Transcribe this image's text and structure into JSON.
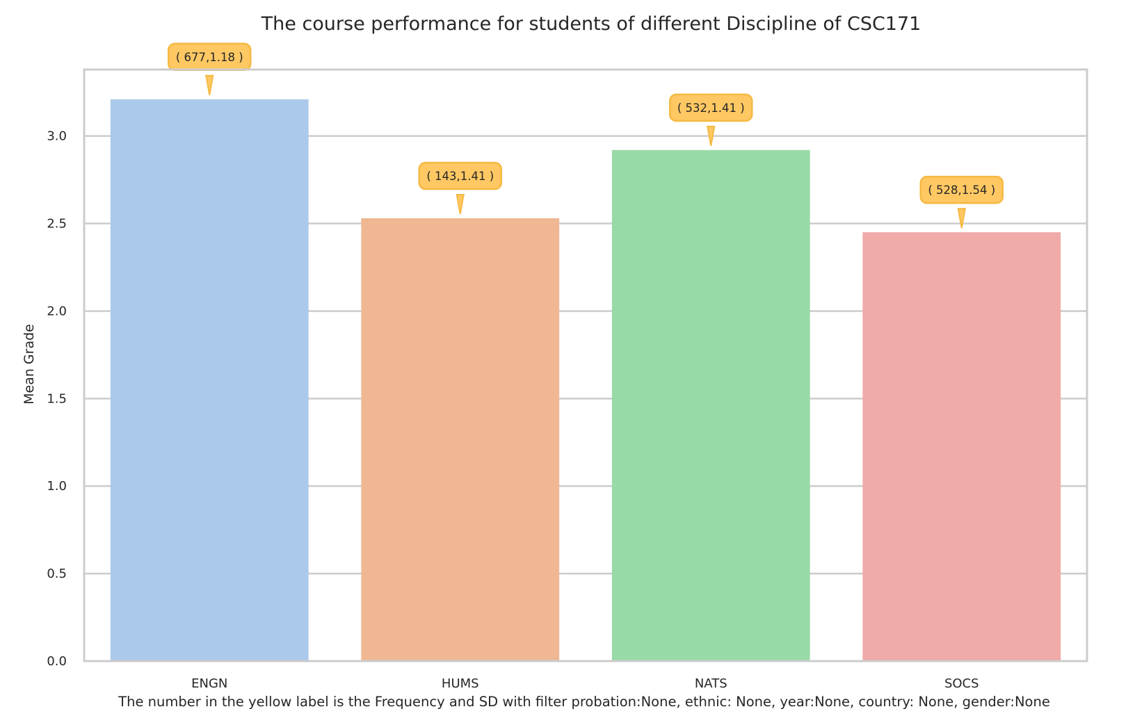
{
  "chart_data": {
    "type": "bar",
    "title": "The course performance for students of different Discipline of CSC171",
    "xlabel": "The number in the yellow label is the Frequency and SD with filter probation:None, ethnic: None, year:None, country: None, gender:None",
    "ylabel": "Mean Grade",
    "categories": [
      "ENGN",
      "HUMS",
      "NATS",
      "SOCS"
    ],
    "values": [
      3.21,
      2.53,
      2.92,
      2.45
    ],
    "annotations": [
      "( 677,1.18 )",
      "( 143,1.41 )",
      "( 532,1.41 )",
      "( 528,1.54 )"
    ],
    "ylim": [
      0,
      3.38
    ],
    "yticks": [
      "0.0",
      "0.5",
      "1.0",
      "1.5",
      "2.0",
      "2.5",
      "3.0"
    ],
    "grid": true,
    "colors": [
      "#abc9ea",
      "#efb792",
      "#98daa7",
      "#f0aaa8"
    ],
    "annotation_color": "#ffc863",
    "annotation_border": "#f5b942"
  }
}
